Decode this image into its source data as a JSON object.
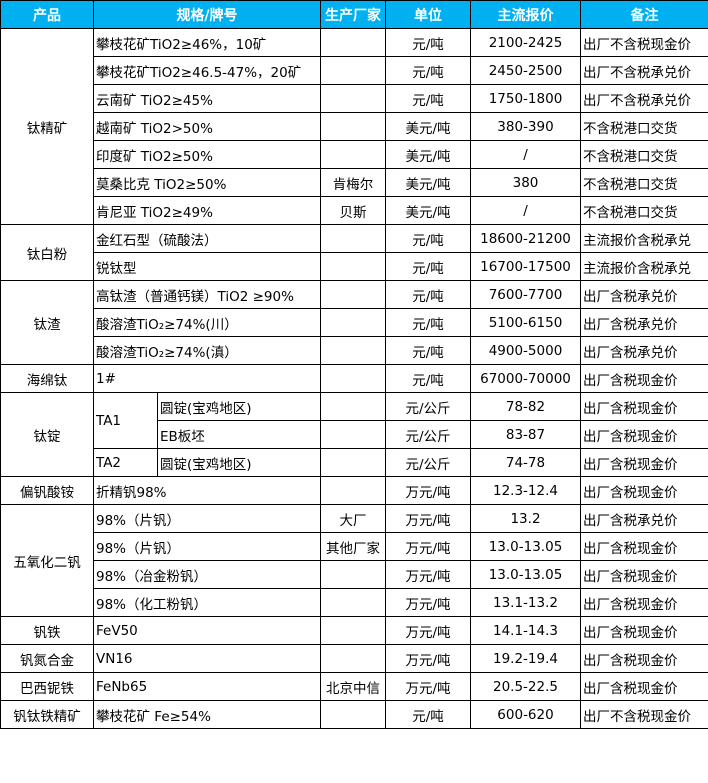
{
  "header": {
    "colors": {
      "header_bg": "#00B0F0",
      "header_text": "#FFFFFF"
    },
    "columns": [
      "产品",
      "规格/牌号",
      "生产厂家",
      "单位",
      "主流报价",
      "备注"
    ]
  },
  "groups": [
    {
      "product": "钛精矿",
      "items": [
        {
          "spec": "攀枝花矿TiO2≥46%，10矿",
          "maker": "",
          "unit": "元/吨",
          "price": "2100-2425",
          "note": "出厂不含税现金价"
        },
        {
          "spec": "攀枝花矿TiO2≥46.5-47%，20矿",
          "maker": "",
          "unit": "元/吨",
          "price": "2450-2500",
          "note": "出厂不含税承兑价"
        },
        {
          "spec": "云南矿 TiO2≥45%",
          "maker": "",
          "unit": "元/吨",
          "price": "1750-1800",
          "note": "出厂不含税承兑价"
        },
        {
          "spec": "越南矿 TiO2>50%",
          "maker": "",
          "unit": "美元/吨",
          "price": "380-390",
          "note": "不含税港口交货"
        },
        {
          "spec": "印度矿 TiO2≥50%",
          "maker": "",
          "unit": "美元/吨",
          "price": "/",
          "note": "不含税港口交货"
        },
        {
          "spec": "莫桑比克 TiO2≥50%",
          "maker": "肯梅尔",
          "unit": "美元/吨",
          "price": "380",
          "note": "不含税港口交货"
        },
        {
          "spec": "肯尼亚 TiO2≥49%",
          "maker": "贝斯",
          "unit": "美元/吨",
          "price": "/",
          "note": "不含税港口交货"
        }
      ]
    },
    {
      "product": "钛白粉",
      "items": [
        {
          "spec": "金红石型（硫酸法）",
          "maker": "",
          "unit": "元/吨",
          "price": "18600-21200",
          "note": "主流报价含税承兑"
        },
        {
          "spec": "锐钛型",
          "maker": "",
          "unit": "元/吨",
          "price": "16700-17500",
          "note": "主流报价含税承兑"
        }
      ]
    },
    {
      "product": "钛渣",
      "items": [
        {
          "spec": "高钛渣（普通钙镁）TiO2 ≥90%",
          "maker": "",
          "unit": "元/吨",
          "price": "7600-7700",
          "note": "出厂含税承兑价"
        },
        {
          "spec": "酸溶渣TiO₂≥74%(川）",
          "maker": "",
          "unit": "元/吨",
          "price": "5100-6150",
          "note": "出厂含税承兑价"
        },
        {
          "spec": "酸溶渣TiO₂≥74%(滇）",
          "maker": "",
          "unit": "元/吨",
          "price": "4900-5000",
          "note": "出厂含税承兑价"
        }
      ]
    },
    {
      "product": "海绵钛",
      "items": [
        {
          "spec": "1#",
          "maker": "",
          "unit": "元/吨",
          "price": "67000-70000",
          "note": "出厂含税现金价"
        }
      ]
    },
    {
      "product": "钛锭",
      "items": [
        {
          "grade": "TA1",
          "sub": "圆锭(宝鸡地区)",
          "maker": "",
          "unit": "元/公斤",
          "price": "78-82",
          "note": "出厂含税现金价"
        },
        {
          "grade": "TA1",
          "sub": "EB板坯",
          "maker": "",
          "unit": "元/公斤",
          "price": "83-87",
          "note": "出厂含税现金价"
        },
        {
          "grade": "TA2",
          "sub": "圆锭(宝鸡地区)",
          "maker": "",
          "unit": "元/公斤",
          "price": "74-78",
          "note": "出厂含税现金价"
        }
      ]
    },
    {
      "product": "偏钒酸铵",
      "items": [
        {
          "spec": "折精钒98%",
          "maker": "",
          "unit": "万元/吨",
          "price": "12.3-12.4",
          "note": "出厂含税现金价"
        }
      ]
    },
    {
      "product": "五氧化二钒",
      "items": [
        {
          "spec": "98%（片钒）",
          "maker": "大厂",
          "unit": "万元/吨",
          "price": "13.2",
          "note": "出厂含税承兑价"
        },
        {
          "spec": "98%（片钒）",
          "maker": "其他厂家",
          "unit": "万元/吨",
          "price": "13.0-13.05",
          "note": "出厂含税现金价"
        },
        {
          "spec": "98%（冶金粉钒）",
          "maker": "",
          "unit": "万元/吨",
          "price": "13.0-13.05",
          "note": "出厂含税现金价"
        },
        {
          "spec": "98%（化工粉钒）",
          "maker": "",
          "unit": "万元/吨",
          "price": "13.1-13.2",
          "note": "出厂含税现金价"
        }
      ]
    },
    {
      "product": "钒铁",
      "items": [
        {
          "spec": "FeV50",
          "maker": "",
          "unit": "万元/吨",
          "price": "14.1-14.3",
          "note": "出厂含税现金价"
        }
      ]
    },
    {
      "product": "钒氮合金",
      "items": [
        {
          "spec": "VN16",
          "maker": "",
          "unit": "万元/吨",
          "price": "19.2-19.4",
          "note": "出厂含税现金价"
        }
      ]
    },
    {
      "product": "巴西铌铁",
      "items": [
        {
          "spec": "FeNb65",
          "maker": "北京中信",
          "unit": "万元/吨",
          "price": "20.5-22.5",
          "note": "出厂含税现金价"
        }
      ]
    },
    {
      "product": "钒钛铁精矿",
      "items": [
        {
          "spec": "攀枝花矿 Fe≥54%",
          "maker": "",
          "unit": "元/吨",
          "price": "600-620",
          "note": "出厂不含税现金价"
        }
      ]
    }
  ]
}
